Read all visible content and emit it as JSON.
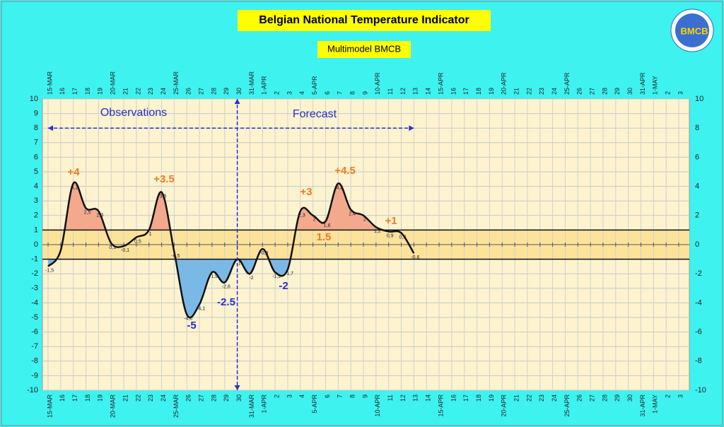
{
  "chart_data": {
    "type": "line",
    "title": "Belgian National Temperature Indicator",
    "subtitle": "Multimodel BMCB",
    "logo": "BMCB",
    "categories": [
      "15-MAR",
      "16",
      "17",
      "18",
      "19",
      "20-MAR",
      "21",
      "22",
      "23",
      "24",
      "25-MAR",
      "26",
      "27",
      "28",
      "29",
      "30",
      "31-MAR",
      "1-APR",
      "2",
      "3",
      "4",
      "5-APR",
      "6",
      "7",
      "8",
      "9",
      "10-APR",
      "11",
      "12",
      "13",
      "14",
      "15-APR",
      "16",
      "17",
      "18",
      "19",
      "20-APR",
      "21",
      "22",
      "23",
      "24",
      "25-APR",
      "26",
      "27",
      "28",
      "29",
      "30",
      "31-APR",
      "1-MAY",
      "2",
      "3"
    ],
    "series": [
      {
        "name": "Indicator",
        "color": "#111111",
        "values": [
          -1.5,
          -0.4,
          4.2,
          2.5,
          2.3,
          0.1,
          -0.1,
          0.5,
          1,
          3.6,
          -0.5,
          -4.8,
          -4.1,
          -1.9,
          -2.6,
          -1,
          -2,
          -0.3,
          -1.9,
          -1.7,
          2.3,
          2,
          1.6,
          4.2,
          2.4,
          2,
          1.2,
          0.9,
          0.8,
          -0.6,
          null,
          null,
          null,
          null,
          null,
          null,
          null,
          null,
          null,
          null,
          null,
          null,
          null,
          null,
          null,
          null,
          null,
          null,
          null,
          null,
          null
        ],
        "value_labels": [
          "-1,5",
          null,
          "4,2",
          "2,5",
          "2,3",
          "0,1",
          "-0,1",
          "0,5",
          "1",
          "3,6",
          "-0,5",
          "-4,8",
          "-4,1",
          "-1,9",
          "-2,6",
          "-1",
          "-2",
          "-0,3",
          "-1,9",
          "-1,7",
          "2,3",
          "2",
          "1,6",
          "4,2",
          "2,4",
          "2",
          "1,2",
          "0,9",
          "0,8",
          "-0,6",
          null,
          null,
          null,
          null,
          null,
          null,
          null,
          null,
          null,
          null,
          null,
          null,
          null,
          null,
          null,
          null,
          null,
          null,
          null,
          null,
          null
        ]
      }
    ],
    "band": [
      -1,
      1
    ],
    "above_color": "#f4a98c",
    "below_color": "#7ab8e6",
    "band_color": "#fde39a",
    "ylim": [
      -10,
      10
    ],
    "yticks": [
      -10,
      -9,
      -8,
      -7,
      -6,
      -5,
      -4,
      -3,
      -2,
      -1,
      0,
      1,
      2,
      3,
      4,
      5,
      6,
      7,
      8,
      9,
      10
    ],
    "y2lim": [
      -10,
      10
    ],
    "y2ticks": [
      -10,
      -8,
      -6,
      -4,
      -2,
      0,
      2,
      4,
      6,
      8,
      10
    ],
    "grid": true,
    "sections": [
      "Observations",
      "Forecast"
    ],
    "annotations": [
      "+4",
      "+3.5",
      "-5",
      "-2.5",
      "-2",
      "+3",
      "+4.5",
      "1.5",
      "+1"
    ]
  }
}
